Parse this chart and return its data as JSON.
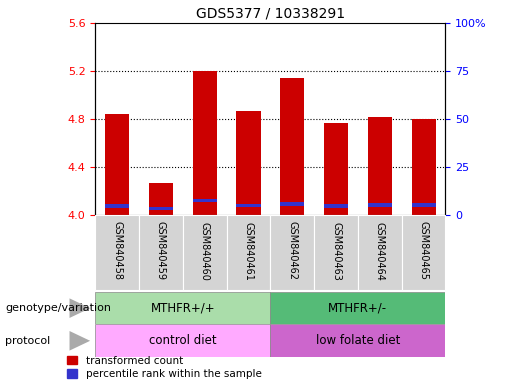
{
  "title": "GDS5377 / 10338291",
  "samples": [
    "GSM840458",
    "GSM840459",
    "GSM840460",
    "GSM840461",
    "GSM840462",
    "GSM840463",
    "GSM840464",
    "GSM840465"
  ],
  "red_tops": [
    4.84,
    4.27,
    5.2,
    4.87,
    5.14,
    4.77,
    4.82,
    4.8
  ],
  "blue_bottoms": [
    4.055,
    4.04,
    4.105,
    4.065,
    4.075,
    4.06,
    4.07,
    4.07
  ],
  "blue_tops": [
    4.09,
    4.07,
    4.135,
    4.095,
    4.105,
    4.09,
    4.1,
    4.1
  ],
  "bar_base": 4.0,
  "ylim_left": [
    4.0,
    5.6
  ],
  "ylim_right": [
    0,
    100
  ],
  "left_ticks": [
    4.0,
    4.4,
    4.8,
    5.2,
    5.6
  ],
  "right_ticks": [
    0,
    25,
    50,
    75,
    100
  ],
  "right_tick_labels": [
    "0",
    "25",
    "50",
    "75",
    "100%"
  ],
  "dotted_lines": [
    4.4,
    4.8,
    5.2
  ],
  "bar_width": 0.55,
  "red_color": "#cc0000",
  "blue_color": "#3333cc",
  "geno_color_1": "#aaddaa",
  "geno_color_2": "#55bb77",
  "proto_color_1": "#ffaaff",
  "proto_color_2": "#cc66cc",
  "legend_red_label": "transformed count",
  "legend_blue_label": "percentile rank within the sample",
  "genotype_label": "genotype/variation",
  "protocol_label": "protocol"
}
